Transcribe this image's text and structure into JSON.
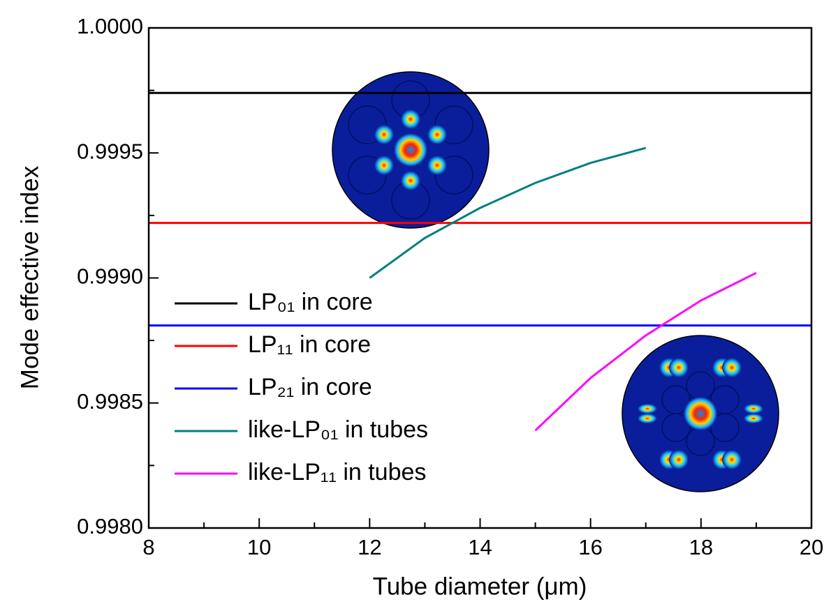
{
  "chart_data": {
    "type": "line",
    "xlabel": "Tube diameter (μm)",
    "ylabel": "Mode effective index",
    "xlim": [
      8,
      20
    ],
    "xticks": [
      8,
      10,
      12,
      14,
      16,
      18,
      20
    ],
    "xminorticks": [
      9,
      11,
      13,
      15,
      17,
      19
    ],
    "ylim": [
      0.998,
      1.0
    ],
    "yticks": [
      {
        "value": 0.998,
        "label": "0.9980"
      },
      {
        "value": 0.9985,
        "label": "0.9985"
      },
      {
        "value": 0.999,
        "label": "0.9990"
      },
      {
        "value": 0.9995,
        "label": "0.9995"
      },
      {
        "value": 1.0,
        "label": "1.0000"
      }
    ],
    "yminorticks": [
      0.99825,
      0.99875,
      0.99925,
      0.99975
    ],
    "legend": "left",
    "series": [
      {
        "name": "LP₀₁ in core",
        "color": "#000000",
        "x": [
          8,
          20
        ],
        "values": [
          0.99974,
          0.99974
        ]
      },
      {
        "name": "LP₁₁ in core",
        "color": "#ff0000",
        "x": [
          8,
          20
        ],
        "values": [
          0.99922,
          0.99922
        ]
      },
      {
        "name": "LP₂₁ in core",
        "color": "#0000ff",
        "x": [
          8,
          20
        ],
        "values": [
          0.99881,
          0.99881
        ]
      },
      {
        "name": "like-LP₀₁ in tubes",
        "color": "#007f7f",
        "x": [
          12,
          13,
          14,
          15,
          16,
          17
        ],
        "values": [
          0.999,
          0.99916,
          0.99928,
          0.99938,
          0.99946,
          0.99952
        ]
      },
      {
        "name": "like-LP₁₁ in tubes",
        "color": "#ff00ff",
        "x": [
          15,
          16,
          17,
          18,
          19
        ],
        "values": [
          0.99839,
          0.9986,
          0.99877,
          0.99891,
          0.99902
        ]
      }
    ]
  }
}
